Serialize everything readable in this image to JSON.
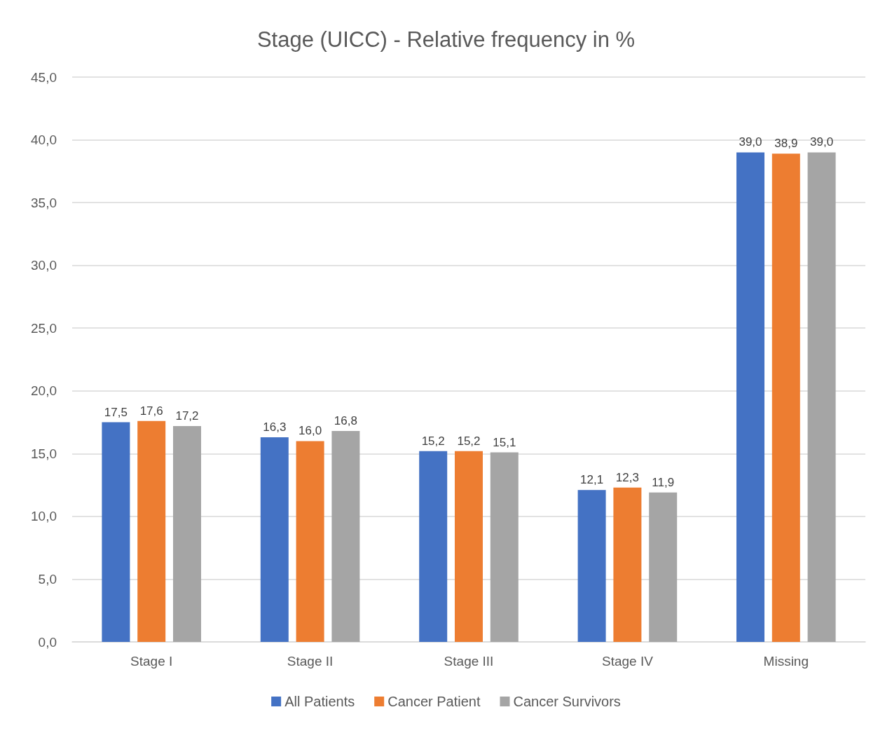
{
  "chart_data": {
    "type": "bar",
    "title": "Stage (UICC) - Relative frequency in %",
    "categories": [
      "Stage I",
      "Stage II",
      "Stage III",
      "Stage IV",
      "Missing"
    ],
    "series": [
      {
        "name": "All Patients",
        "color": "#4472c4",
        "values": [
          17.5,
          16.3,
          15.2,
          12.1,
          39.0
        ],
        "value_labels": [
          "17,5",
          "16,3",
          "15,2",
          "12,1",
          "39,0"
        ]
      },
      {
        "name": "Cancer Patient",
        "color": "#ed7d31",
        "values": [
          17.6,
          16.0,
          15.2,
          12.3,
          38.9
        ],
        "value_labels": [
          "17,6",
          "16,0",
          "15,2",
          "12,3",
          "38,9"
        ]
      },
      {
        "name": "Cancer Survivors",
        "color": "#a5a5a5",
        "values": [
          17.2,
          16.8,
          15.1,
          11.9,
          39.0
        ],
        "value_labels": [
          "17,2",
          "16,8",
          "15,1",
          "11,9",
          "39,0"
        ]
      }
    ],
    "ylim": [
      0,
      45
    ],
    "yticks": [
      {
        "value": 0,
        "label": "0,0"
      },
      {
        "value": 5,
        "label": "5,0"
      },
      {
        "value": 10,
        "label": "10,0"
      },
      {
        "value": 15,
        "label": "15,0"
      },
      {
        "value": 20,
        "label": "20,0"
      },
      {
        "value": 25,
        "label": "25,0"
      },
      {
        "value": 30,
        "label": "30,0"
      },
      {
        "value": 35,
        "label": "35,0"
      },
      {
        "value": 40,
        "label": "40,0"
      },
      {
        "value": 45,
        "label": "45,0"
      }
    ],
    "grid": "y",
    "legend": "bottom"
  }
}
